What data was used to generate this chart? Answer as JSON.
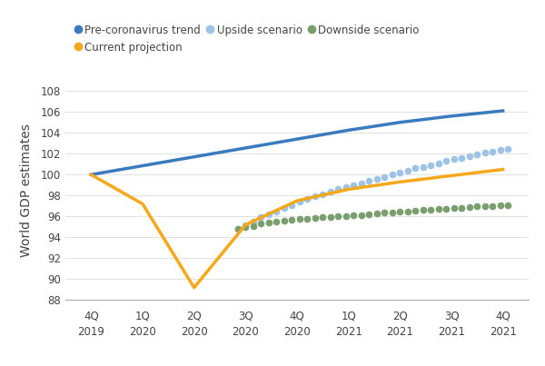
{
  "x_labels_top": [
    "4Q",
    "1Q",
    "2Q",
    "3Q",
    "4Q",
    "1Q",
    "2Q",
    "3Q",
    "4Q"
  ],
  "x_labels_bot": [
    "2019",
    "2020",
    "2020",
    "2020",
    "2020",
    "2021",
    "2021",
    "2021",
    "2021"
  ],
  "x_positions": [
    0,
    1,
    2,
    3,
    4,
    5,
    6,
    7,
    8
  ],
  "trend_line": {
    "x": [
      0,
      1,
      2,
      3,
      4,
      5,
      6,
      7,
      8
    ],
    "y": [
      100.0,
      100.85,
      101.7,
      102.55,
      103.4,
      104.25,
      105.0,
      105.6,
      106.1
    ],
    "color": "#3a7abf",
    "linewidth": 2.5,
    "label": "Pre-coronavirus trend"
  },
  "current_projection": {
    "x": [
      0,
      1,
      2,
      3,
      4,
      5,
      6,
      7,
      8
    ],
    "y": [
      100.0,
      97.2,
      89.2,
      95.2,
      97.5,
      98.6,
      99.3,
      99.9,
      100.5
    ],
    "color": "#f5a81c",
    "linewidth": 2.5,
    "label": "Current projection"
  },
  "upside": {
    "x": [
      2.85,
      3.0,
      3.15,
      3.3,
      3.45,
      3.6,
      3.75,
      3.9,
      4.05,
      4.2,
      4.35,
      4.5,
      4.65,
      4.8,
      4.95,
      5.1,
      5.25,
      5.4,
      5.55,
      5.7,
      5.85,
      6.0,
      6.15,
      6.3,
      6.45,
      6.6,
      6.75,
      6.9,
      7.05,
      7.2,
      7.35,
      7.5,
      7.65,
      7.8,
      7.95,
      8.1
    ],
    "y": [
      94.8,
      95.2,
      95.5,
      95.9,
      96.2,
      96.5,
      96.8,
      97.1,
      97.4,
      97.7,
      97.9,
      98.1,
      98.4,
      98.6,
      98.8,
      99.0,
      99.2,
      99.4,
      99.6,
      99.8,
      100.0,
      100.2,
      100.4,
      100.6,
      100.7,
      100.9,
      101.1,
      101.3,
      101.5,
      101.6,
      101.8,
      101.9,
      102.1,
      102.2,
      102.4,
      102.5
    ],
    "color": "#9dc3e6",
    "markersize": 4.5,
    "label": "Upside scenario"
  },
  "downside": {
    "x": [
      2.85,
      3.0,
      3.15,
      3.3,
      3.45,
      3.6,
      3.75,
      3.9,
      4.05,
      4.2,
      4.35,
      4.5,
      4.65,
      4.8,
      4.95,
      5.1,
      5.25,
      5.4,
      5.55,
      5.7,
      5.85,
      6.0,
      6.15,
      6.3,
      6.45,
      6.6,
      6.75,
      6.9,
      7.05,
      7.2,
      7.35,
      7.5,
      7.65,
      7.8,
      7.95,
      8.1
    ],
    "y": [
      94.8,
      95.0,
      95.1,
      95.3,
      95.4,
      95.5,
      95.6,
      95.7,
      95.75,
      95.8,
      95.85,
      95.9,
      95.95,
      96.0,
      96.05,
      96.1,
      96.15,
      96.2,
      96.25,
      96.35,
      96.4,
      96.45,
      96.5,
      96.55,
      96.6,
      96.65,
      96.7,
      96.75,
      96.8,
      96.85,
      96.9,
      96.95,
      97.0,
      97.0,
      97.05,
      97.1
    ],
    "color": "#7a9e6e",
    "markersize": 4.5,
    "label": "Downside scenario"
  },
  "ylabel": "World GDP estimates",
  "ylim": [
    88,
    109
  ],
  "yticks": [
    88,
    90,
    92,
    94,
    96,
    98,
    100,
    102,
    104,
    106,
    108
  ],
  "background_color": "#ffffff",
  "legend_fontsize": 8.5,
  "axis_fontsize": 8.5,
  "ylabel_fontsize": 10
}
